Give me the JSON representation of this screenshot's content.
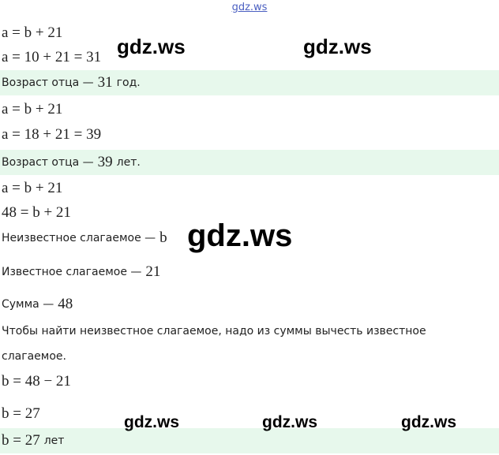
{
  "header": {
    "title": "gdz.ws"
  },
  "lines": [
    {
      "parts": [
        {
          "text": "a = b + 21",
          "style": "math"
        }
      ]
    },
    {
      "parts": [
        {
          "text": "a = 10 + 21 = 31",
          "style": "math"
        }
      ]
    },
    {
      "highlight": true,
      "parts": [
        {
          "text": "Возраст отца —",
          "style": "prose"
        },
        {
          "text": "31",
          "style": "math"
        },
        {
          "text": "год.",
          "style": "prose"
        }
      ]
    },
    {
      "parts": [
        {
          "text": "a = b + 21",
          "style": "math"
        }
      ]
    },
    {
      "parts": [
        {
          "text": "a = 18 + 21 = 39",
          "style": "math"
        }
      ]
    },
    {
      "highlight": true,
      "parts": [
        {
          "text": "Возраст отца —",
          "style": "prose"
        },
        {
          "text": "39",
          "style": "math"
        },
        {
          "text": "лет.",
          "style": "prose"
        }
      ]
    },
    {
      "parts": [
        {
          "text": "a = b + 21",
          "style": "math"
        }
      ]
    },
    {
      "parts": [
        {
          "text": "48 = b + 21",
          "style": "math"
        }
      ]
    },
    {
      "parts": [
        {
          "text": "Неизвестное слагаемое —",
          "style": "prose"
        },
        {
          "text": "b",
          "style": "math"
        }
      ]
    },
    {
      "parts": [
        {
          "text": "Известное слагаемое —",
          "style": "prose"
        },
        {
          "text": "21",
          "style": "math"
        }
      ]
    },
    {
      "parts": [
        {
          "text": "Сумма —",
          "style": "prose"
        },
        {
          "text": "48",
          "style": "math"
        }
      ]
    },
    {
      "parts": [
        {
          "text": "Чтобы найти неизвестное слагаемое, надо из суммы вычесть известное",
          "style": "prose"
        }
      ]
    },
    {
      "parts": [
        {
          "text": "слагаемое.",
          "style": "prose"
        }
      ]
    },
    {
      "parts": [
        {
          "text": "b = 48 − 21",
          "style": "math"
        }
      ]
    },
    {
      "parts": [
        {
          "text": "b = 27",
          "style": "math"
        }
      ]
    },
    {
      "highlight": true,
      "parts": [
        {
          "text": "b = 27",
          "style": "math"
        },
        {
          "text": "лет",
          "style": "prose"
        }
      ]
    }
  ],
  "watermarks": [
    "gdz.ws",
    "gdz.ws",
    "gdz.ws",
    "gdz.ws",
    "gdz.ws",
    "gdz.ws"
  ]
}
